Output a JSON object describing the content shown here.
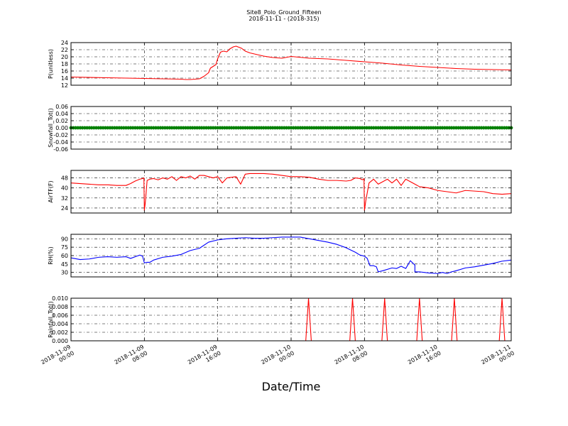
{
  "title": "Site8_Polo_Ground_Fifteen",
  "subtitle": "2018-11-11 - (2018-315)",
  "xlabel": "Date/Time",
  "x_ticks": [
    {
      "t": 0,
      "line1": "2018-11-09",
      "line2": "00:00"
    },
    {
      "t": 8,
      "line1": "2018-11-09",
      "line2": "08:00"
    },
    {
      "t": 16,
      "line1": "2018-11-09",
      "line2": "16:00"
    },
    {
      "t": 24,
      "line1": "2018-11-10",
      "line2": "00:00"
    },
    {
      "t": 32,
      "line1": "2018-11-10",
      "line2": "08:00"
    },
    {
      "t": 40,
      "line1": "2018-11-10",
      "line2": "16:00"
    },
    {
      "t": 48,
      "line1": "2018-11-11",
      "line2": "00:00"
    }
  ],
  "x_range_hours": [
    0,
    48
  ],
  "chart_data": [
    {
      "type": "line",
      "ylabel": "P(unitless)",
      "ylim": [
        12,
        24
      ],
      "yticks": [
        12,
        14,
        16,
        18,
        20,
        22,
        24
      ],
      "grid": true,
      "series": [
        {
          "color": "#ff0000",
          "marker": "none",
          "x": [
            0,
            4,
            8,
            12,
            12.5,
            13,
            13.5,
            14,
            14.5,
            15,
            15.2,
            15.5,
            15.8,
            16,
            16.3,
            16.6,
            17,
            17.3,
            17.7,
            18,
            18.3,
            18.6,
            19,
            19.5,
            20,
            21,
            22,
            23,
            24,
            26,
            28,
            30,
            32,
            34,
            36,
            38,
            40,
            42,
            44,
            46,
            48
          ],
          "y": [
            14.3,
            14.1,
            13.9,
            13.7,
            13.6,
            13.6,
            13.7,
            13.8,
            14.5,
            15.5,
            16.8,
            17.3,
            17.8,
            19.5,
            21.3,
            21.6,
            21.4,
            22.2,
            22.8,
            23.0,
            22.7,
            22.4,
            21.6,
            21.1,
            20.8,
            20.2,
            19.8,
            19.6,
            20.1,
            19.6,
            19.4,
            19.0,
            18.6,
            18.2,
            17.7,
            17.3,
            17.0,
            16.7,
            16.5,
            16.4,
            16.3
          ]
        }
      ]
    },
    {
      "type": "scatter",
      "ylabel": "Snowfall_Tot()",
      "ylim": [
        -0.06,
        0.06
      ],
      "yticks": [
        -0.06,
        -0.04,
        -0.02,
        0.0,
        0.02,
        0.04,
        0.06
      ],
      "grid": true,
      "series": [
        {
          "color": "#008000",
          "marker": "circle",
          "constant": 0.0,
          "interval_hours": 0.25
        }
      ]
    },
    {
      "type": "line",
      "ylabel": "AirTF(F)",
      "ylim": [
        20,
        54
      ],
      "yticks": [
        24,
        32,
        40,
        48
      ],
      "grid": true,
      "series": [
        {
          "color": "#ff0000",
          "marker": "none",
          "x": [
            0,
            1,
            2,
            3,
            4,
            5,
            6,
            6.5,
            7,
            7.5,
            7.8,
            7.95,
            8.0,
            8.1,
            8.3,
            8.6,
            9,
            9.5,
            10,
            10.5,
            11,
            11.5,
            12,
            12.5,
            13,
            13.5,
            14,
            14.5,
            15,
            15.5,
            16,
            16.5,
            17,
            17.5,
            18,
            18.5,
            19,
            19.5,
            20,
            21,
            22,
            23,
            24,
            25,
            26,
            27,
            28,
            29,
            30,
            30.5,
            31,
            31.5,
            31.8,
            31.95,
            32.0,
            32.15,
            32.5,
            33,
            33.5,
            34,
            34.5,
            35,
            35.5,
            36,
            36.5,
            37,
            37.5,
            38,
            39,
            40,
            41,
            41.5,
            42,
            43,
            44,
            45,
            46,
            47,
            48
          ],
          "y": [
            44,
            43.5,
            43,
            42.5,
            42.5,
            42,
            42,
            43.5,
            45.5,
            47,
            47.5,
            48,
            22,
            28,
            46,
            47,
            47.5,
            46.5,
            48,
            47,
            49,
            46,
            49,
            48,
            49.5,
            47,
            50,
            50,
            49,
            48,
            49,
            44,
            48,
            48.5,
            49,
            43,
            51,
            51.5,
            51.5,
            51.5,
            51,
            50,
            49,
            49,
            48.5,
            47,
            46,
            46,
            45.5,
            46,
            48,
            47.5,
            46.5,
            47.5,
            22,
            30,
            44,
            47,
            43,
            45,
            47,
            44,
            47,
            42,
            47,
            45,
            43,
            41,
            40,
            38,
            37,
            36.5,
            36,
            38,
            37.5,
            37,
            35.5,
            35,
            35.5
          ]
        }
      ]
    },
    {
      "type": "line",
      "ylabel": "RH(%)",
      "ylim": [
        22,
        98
      ],
      "yticks": [
        30,
        45,
        60,
        75,
        90
      ],
      "grid": true,
      "series": [
        {
          "color": "#0000ff",
          "marker": "none",
          "x": [
            0,
            1,
            2,
            3,
            4,
            5,
            6,
            6.5,
            7,
            7.5,
            7.8,
            8,
            8.3,
            8.6,
            9,
            10,
            11,
            12,
            13,
            14,
            15,
            16,
            17,
            18,
            19,
            20,
            21,
            22,
            23,
            24,
            25,
            26,
            27,
            28,
            29,
            30,
            30.5,
            31,
            31.5,
            32,
            32.3,
            32.6,
            33,
            33.3,
            33.5,
            34,
            35,
            35.5,
            36,
            36.5,
            37,
            37.5,
            37.5,
            38,
            39,
            40,
            40.5,
            41,
            41.5,
            42,
            43,
            44,
            45,
            46,
            47,
            48
          ],
          "y": [
            56,
            53,
            54,
            57,
            58,
            57,
            58,
            55,
            58,
            61,
            59,
            47,
            48,
            48,
            52,
            57,
            59,
            62,
            69,
            73,
            84,
            88,
            90,
            91,
            92,
            91,
            91,
            92,
            93,
            93,
            93,
            90,
            87,
            84,
            80,
            74,
            70,
            66,
            61,
            59,
            55,
            42,
            42,
            40,
            31,
            33,
            38,
            37,
            41,
            37,
            51,
            43,
            31,
            31,
            29,
            28,
            30,
            28,
            31,
            33,
            38,
            40,
            43,
            46,
            50,
            52
          ]
        }
      ]
    },
    {
      "type": "line",
      "ylabel": "Rainfall_Tot()",
      "ylim": [
        0,
        0.01
      ],
      "yticks": [
        0.0,
        0.002,
        0.004,
        0.006,
        0.008,
        0.01
      ],
      "grid": true,
      "series": [
        {
          "color": "#ff0000",
          "marker": "none",
          "x": [
            0,
            25.6,
            25.9,
            26.2,
            30.4,
            30.7,
            31.0,
            33.9,
            34.2,
            34.5,
            37.7,
            38.0,
            38.3,
            41.5,
            41.8,
            42.1,
            46.7,
            47.0,
            47.3,
            48
          ],
          "y": [
            0,
            0,
            0.01,
            0,
            0,
            0.01,
            0,
            0,
            0.01,
            0,
            0,
            0.01,
            0,
            0,
            0.01,
            0,
            0,
            0.01,
            0,
            0
          ]
        }
      ]
    }
  ]
}
